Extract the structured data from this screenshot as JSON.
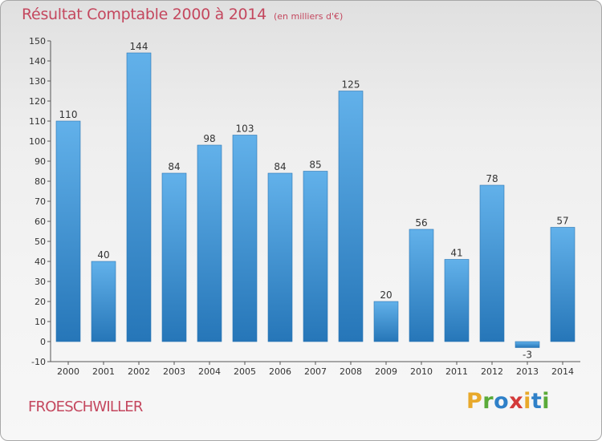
{
  "header": {
    "title": "Résultat Comptable 2000 à 2014",
    "unit_note": "(en milliers d'€)"
  },
  "footer": {
    "commune": "FROESCHWILLER",
    "logo_letters": [
      "P",
      "r",
      "o",
      "x",
      "i",
      "t",
      "i"
    ],
    "logo_colors": [
      "#e8a92b",
      "#5aaa39",
      "#2f80c8",
      "#d33a3a",
      "#e8a92b",
      "#2f80c8",
      "#5aaa39"
    ]
  },
  "colors": {
    "bar_light": "#62b1ea",
    "bar_dark": "#2676b8",
    "text": "#c4475e"
  },
  "chart_data": {
    "type": "bar",
    "title": "Résultat Comptable 2000 à 2014",
    "categories": [
      "2000",
      "2001",
      "2002",
      "2003",
      "2004",
      "2005",
      "2006",
      "2007",
      "2008",
      "2009",
      "2010",
      "2011",
      "2012",
      "2013",
      "2014"
    ],
    "values": [
      110,
      40,
      144,
      84,
      98,
      103,
      84,
      85,
      125,
      20,
      56,
      41,
      78,
      -3,
      57
    ],
    "ylim": [
      -10,
      150
    ],
    "yticks": [
      -10,
      0,
      10,
      20,
      30,
      40,
      50,
      60,
      70,
      80,
      90,
      100,
      110,
      120,
      130,
      140,
      150
    ],
    "grid": false,
    "legend": "none"
  }
}
